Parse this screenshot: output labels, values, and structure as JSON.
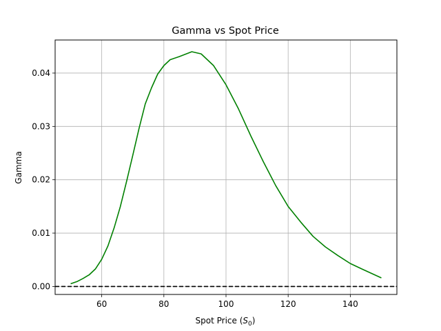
{
  "chart_data": {
    "type": "line",
    "title": "Gamma vs Spot Price",
    "xlabel_main": "Spot Price (",
    "xlabel_symbol": "S",
    "xlabel_sub": "0",
    "xlabel_close": ")",
    "ylabel": "Gamma",
    "xlim": [
      45,
      155
    ],
    "ylim": [
      -0.0015,
      0.0462
    ],
    "grid": true,
    "xticks": [
      60,
      80,
      100,
      120,
      140
    ],
    "xtick_labels": [
      "60",
      "80",
      "100",
      "120",
      "140"
    ],
    "yticks": [
      0.0,
      0.01,
      0.02,
      0.03,
      0.04
    ],
    "ytick_labels": [
      "0.00",
      "0.01",
      "0.02",
      "0.03",
      "0.04"
    ],
    "reference_line": {
      "y": 0,
      "style": "dashed",
      "color": "#000000"
    },
    "series": [
      {
        "color": "#008000",
        "x": [
          50,
          52,
          54,
          56,
          58,
          60,
          62,
          64,
          66,
          68,
          70,
          72,
          74,
          76,
          78,
          80,
          82,
          85,
          89,
          92,
          96,
          100,
          104,
          108,
          112,
          116,
          120,
          124,
          128,
          132,
          136,
          140,
          144,
          150
        ],
        "y": [
          0.0005,
          0.0009,
          0.0015,
          0.0022,
          0.0033,
          0.0051,
          0.0076,
          0.011,
          0.015,
          0.0197,
          0.0246,
          0.0296,
          0.0342,
          0.0372,
          0.0398,
          0.0414,
          0.0425,
          0.0431,
          0.044,
          0.0436,
          0.0414,
          0.0378,
          0.0333,
          0.0282,
          0.0234,
          0.0189,
          0.015,
          0.0121,
          0.0094,
          0.0074,
          0.0058,
          0.0043,
          0.0032,
          0.0016
        ]
      }
    ]
  }
}
